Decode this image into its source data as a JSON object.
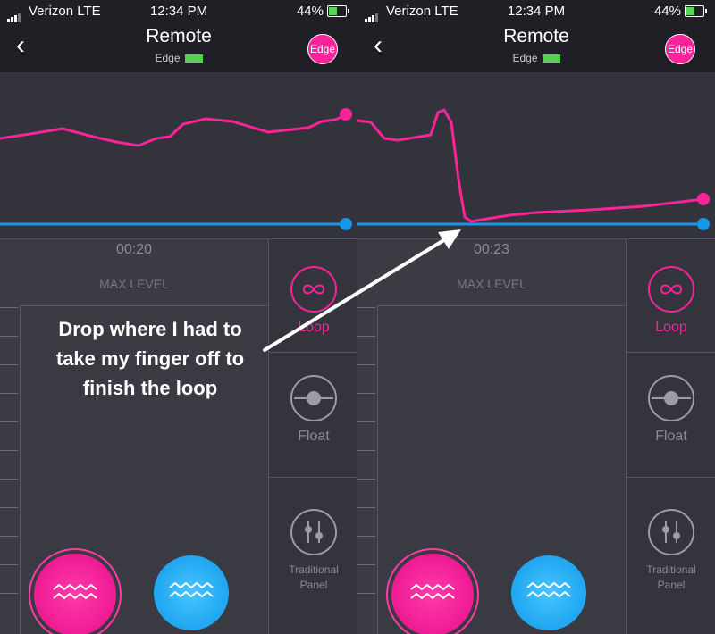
{
  "status_bar": {
    "carrier": "Verizon LTE",
    "time": "12:34 PM",
    "battery": "44%"
  },
  "header": {
    "back_icon": "chevron-left-icon",
    "title": "Remote",
    "device_name": "Edge",
    "badge": "Edge"
  },
  "screens": [
    {
      "timer": "00:20",
      "max_level_label": "MAX LEVEL"
    },
    {
      "timer": "00:23",
      "max_level_label": "MAX LEVEL"
    }
  ],
  "modes": {
    "loop": "Loop",
    "float": "Float",
    "traditional_line1": "Traditional",
    "traditional_line2": "Panel"
  },
  "annotation": "Drop where I had to take my finger off to finish the loop",
  "colors": {
    "accent_pink": "#f7249a",
    "accent_blue": "#1a96e8",
    "bar_bg": "#1f1f25",
    "panel_bg": "#3b3b43",
    "device_battery": "#53d44a"
  }
}
